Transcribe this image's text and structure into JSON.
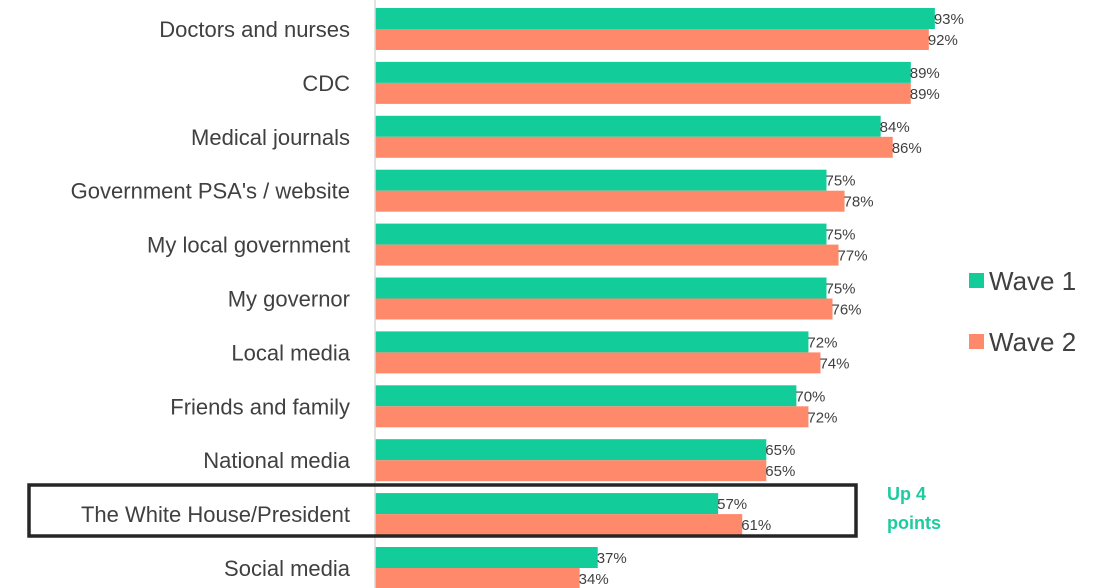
{
  "chart_data": {
    "type": "bar",
    "orientation": "horizontal",
    "categories": [
      "Doctors and nurses",
      "CDC",
      "Medical journals",
      "Government PSA's / website",
      "My local government",
      "My governor",
      "Local media",
      "Friends and family",
      "National media",
      "The White House/President",
      "Social media"
    ],
    "series": [
      {
        "name": "Wave 1",
        "color": "#12CC99",
        "values": [
          93,
          89,
          84,
          75,
          75,
          75,
          72,
          70,
          65,
          57,
          37
        ],
        "labels": [
          "93%",
          "89%",
          "84%",
          "75%",
          "75%",
          "75%",
          "72%",
          "70%",
          "65%",
          "57%",
          "37%"
        ]
      },
      {
        "name": "Wave 2",
        "color": "#FF8A6B",
        "values": [
          92,
          89,
          86,
          78,
          77,
          76,
          74,
          72,
          65,
          61,
          34
        ],
        "labels": [
          "92%",
          "89%",
          "86%",
          "78%",
          "77%",
          "76%",
          "74%",
          "72%",
          "65%",
          "61%",
          "34%"
        ]
      }
    ],
    "xlim": [
      0,
      100
    ],
    "grid": false,
    "legend_position": "right",
    "annotation": {
      "lines": [
        "Up 4",
        "points"
      ],
      "category": "The White House/President",
      "highlight_color": "#262626",
      "text_color": "#1ECBA0"
    }
  }
}
